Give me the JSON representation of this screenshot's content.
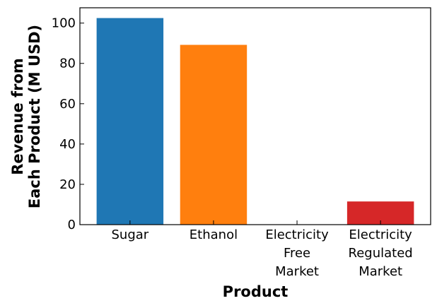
{
  "chart_data": {
    "type": "bar",
    "title": "",
    "xlabel": "Product",
    "ylabel_lines": [
      "Revenue from",
      "Each Product (M USD)"
    ],
    "categories": [
      {
        "label_lines": [
          "Sugar"
        ],
        "value": 102.5,
        "color": "#1f77b4"
      },
      {
        "label_lines": [
          "Ethanol"
        ],
        "value": 89.2,
        "color": "#ff7f0e"
      },
      {
        "label_lines": [
          "Electricity",
          "Free",
          "Market"
        ],
        "value": 0,
        "color": "#2ca02c"
      },
      {
        "label_lines": [
          "Electricity",
          "Regulated",
          "Market"
        ],
        "value": 11.5,
        "color": "#d62728"
      }
    ],
    "yticks": [
      0,
      20,
      40,
      60,
      80,
      100
    ],
    "ylim": [
      0,
      107.6
    ],
    "grid": false
  }
}
